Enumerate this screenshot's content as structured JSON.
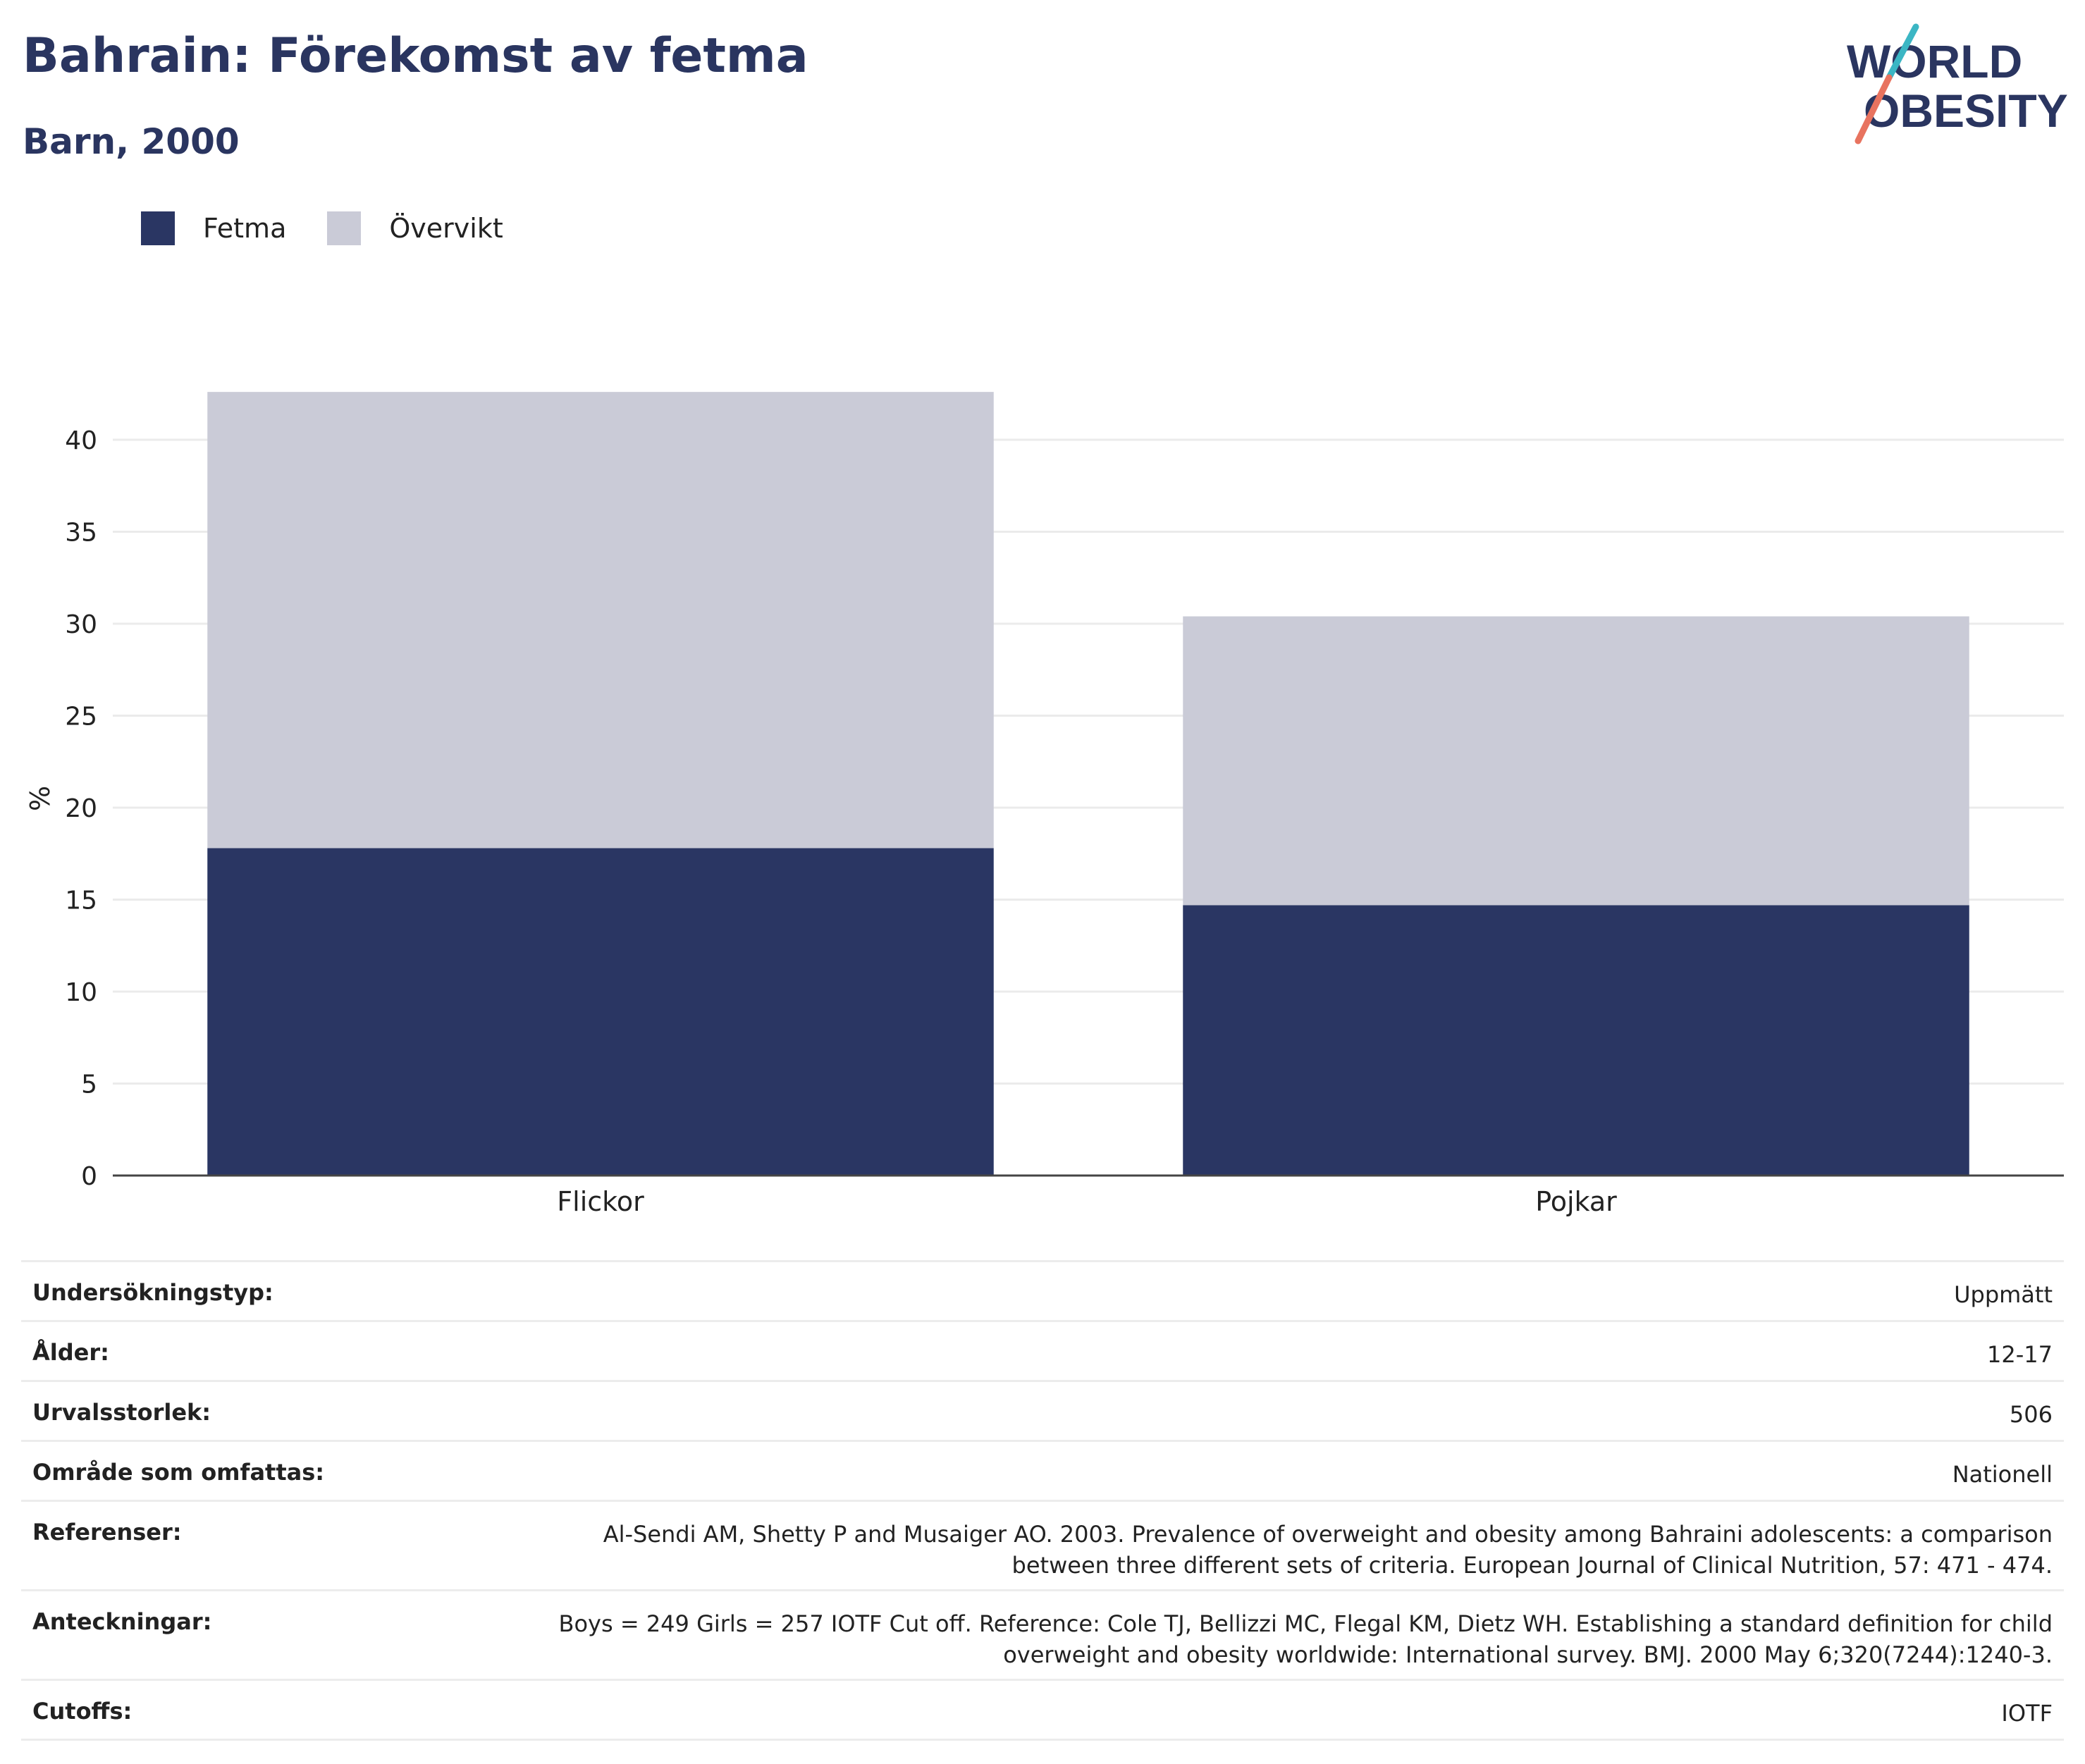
{
  "header": {
    "title": "Bahrain: Förekomst av fetma",
    "subtitle": "Barn, 2000"
  },
  "logo": {
    "line1": "WORLD",
    "line2": "OBESITY"
  },
  "colors": {
    "fetma": "#2a3663",
    "overvikt": "#cacbd7",
    "text": "#2a3560"
  },
  "chart_data": {
    "type": "bar",
    "stacked": true,
    "categories": [
      "Flickor",
      "Pojkar"
    ],
    "series": [
      {
        "name": "Fetma",
        "values": [
          17.8,
          14.7
        ]
      },
      {
        "name": "Övervikt",
        "values": [
          24.8,
          15.7
        ]
      }
    ],
    "ylabel": "%",
    "ylim": [
      0,
      45
    ],
    "yticks": [
      0,
      5,
      10,
      15,
      20,
      25,
      30,
      35,
      40
    ],
    "grid": true,
    "legend": "top-left"
  },
  "info": [
    {
      "key": "Undersökningstyp:",
      "value": "Uppmätt"
    },
    {
      "key": "Ålder:",
      "value": "12-17"
    },
    {
      "key": "Urvalsstorlek:",
      "value": "506"
    },
    {
      "key": "Område som omfattas:",
      "value": "Nationell"
    },
    {
      "key": "Referenser:",
      "value": "Al-Sendi AM, Shetty P and Musaiger AO. 2003. Prevalence of overweight and obesity among Bahraini adolescents: a comparison",
      "value2": "between three different sets of criteria. European Journal of Clinical Nutrition, 57: 471 - 474."
    },
    {
      "key": "Anteckningar:",
      "value": "Boys = 249 Girls = 257 IOTF Cut off. Reference: Cole TJ, Bellizzi MC, Flegal KM, Dietz WH. Establishing a standard definition for child",
      "value2": "overweight and obesity worldwide: International survey. BMJ. 2000 May 6;320(7244):1240-3."
    },
    {
      "key": "Cutoffs:",
      "value": "IOTF"
    }
  ]
}
